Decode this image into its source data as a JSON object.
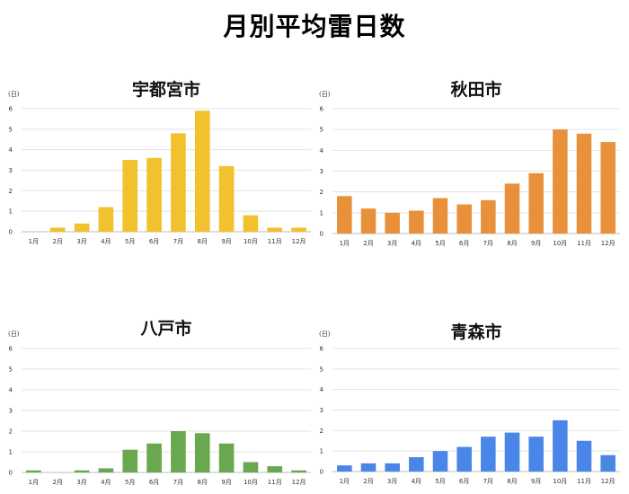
{
  "page_title": "月別平均雷日数",
  "chart_data": [
    {
      "type": "bar",
      "title": "宇都宮市",
      "unit_label": "(日)",
      "categories": [
        "1月",
        "2月",
        "3月",
        "4月",
        "5月",
        "6月",
        "7月",
        "8月",
        "9月",
        "10月",
        "11月",
        "12月"
      ],
      "values": [
        0,
        0.2,
        0.4,
        1.2,
        3.5,
        3.6,
        4.8,
        5.9,
        3.2,
        0.8,
        0.2,
        0.2
      ],
      "ylim": [
        0,
        6
      ],
      "yticks": [
        0,
        1,
        2,
        3,
        4,
        5,
        6
      ],
      "grid": true,
      "color": "#F2C12E"
    },
    {
      "type": "bar",
      "title": "秋田市",
      "unit_label": "(日)",
      "categories": [
        "1月",
        "2月",
        "3月",
        "4月",
        "5月",
        "6月",
        "7月",
        "8月",
        "9月",
        "10月",
        "11月",
        "12月"
      ],
      "values": [
        1.8,
        1.2,
        1.0,
        1.1,
        1.7,
        1.4,
        1.6,
        2.4,
        2.9,
        5.0,
        4.8,
        4.4
      ],
      "ylim": [
        0,
        6
      ],
      "yticks": [
        0,
        1,
        2,
        3,
        4,
        5,
        6
      ],
      "grid": true,
      "color": "#E8913A"
    },
    {
      "type": "bar",
      "title": "八戸市",
      "unit_label": "(日)",
      "categories": [
        "1月",
        "2月",
        "3月",
        "4月",
        "5月",
        "6月",
        "7月",
        "8月",
        "9月",
        "10月",
        "11月",
        "12月"
      ],
      "values": [
        0.1,
        0,
        0.1,
        0.2,
        1.1,
        1.4,
        2.0,
        1.9,
        1.4,
        0.5,
        0.3,
        0.1
      ],
      "ylim": [
        0,
        6
      ],
      "yticks": [
        0,
        1,
        2,
        3,
        4,
        5,
        6
      ],
      "grid": true,
      "color": "#6AA84F"
    },
    {
      "type": "bar",
      "title": "青森市",
      "unit_label": "(日)",
      "categories": [
        "1月",
        "2月",
        "3月",
        "4月",
        "5月",
        "6月",
        "7月",
        "8月",
        "9月",
        "10月",
        "11月",
        "12月"
      ],
      "values": [
        0.3,
        0.4,
        0.4,
        0.7,
        1.0,
        1.2,
        1.7,
        1.9,
        1.7,
        2.5,
        1.5,
        0.8
      ],
      "ylim": [
        0,
        6
      ],
      "yticks": [
        0,
        1,
        2,
        3,
        4,
        5,
        6
      ],
      "grid": true,
      "color": "#4A86E8"
    }
  ]
}
